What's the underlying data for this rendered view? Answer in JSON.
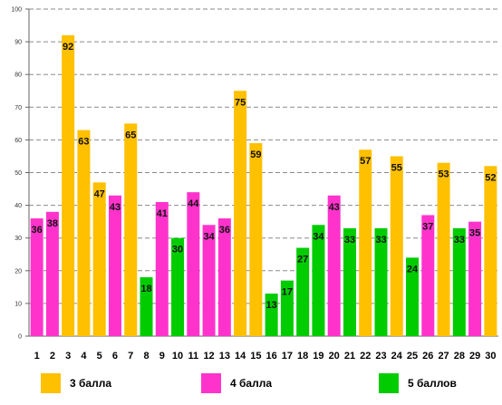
{
  "chart_data": {
    "type": "bar",
    "categories": [
      "1",
      "2",
      "3",
      "4",
      "5",
      "6",
      "7",
      "8",
      "9",
      "10",
      "11",
      "12",
      "13",
      "14",
      "15",
      "16",
      "17",
      "18",
      "19",
      "20",
      "21",
      "22",
      "23",
      "24",
      "25",
      "26",
      "27",
      "28",
      "29",
      "30"
    ],
    "values": [
      36,
      38,
      92,
      63,
      47,
      43,
      65,
      18,
      41,
      30,
      44,
      34,
      36,
      75,
      59,
      13,
      17,
      27,
      34,
      43,
      33,
      57,
      33,
      55,
      24,
      37,
      53,
      33,
      35,
      52
    ],
    "groups": [
      "4 балла",
      "4 балла",
      "3 балла",
      "3 балла",
      "3 балла",
      "4 балла",
      "3 балла",
      "5 баллов",
      "4 балла",
      "5 баллов",
      "4 балла",
      "4 балла",
      "4 балла",
      "3 балла",
      "3 балла",
      "5 баллов",
      "5 баллов",
      "5 баллов",
      "5 баллов",
      "4 балла",
      "5 баллов",
      "3 балла",
      "5 баллов",
      "3 балла",
      "5 баллов",
      "4 балла",
      "3 балла",
      "5 баллов",
      "4 балла",
      "3 балла"
    ],
    "ylim": [
      0,
      100
    ],
    "yticks": [
      0,
      10,
      20,
      30,
      40,
      50,
      60,
      70,
      80,
      90,
      100
    ],
    "grid": true,
    "legend": [
      {
        "name": "3 балла",
        "color": "#FFC000"
      },
      {
        "name": "4 балла",
        "color": "#FF33CC"
      },
      {
        "name": "5 баллов",
        "color": "#00CC00"
      }
    ],
    "legend_placement": "bottom"
  }
}
